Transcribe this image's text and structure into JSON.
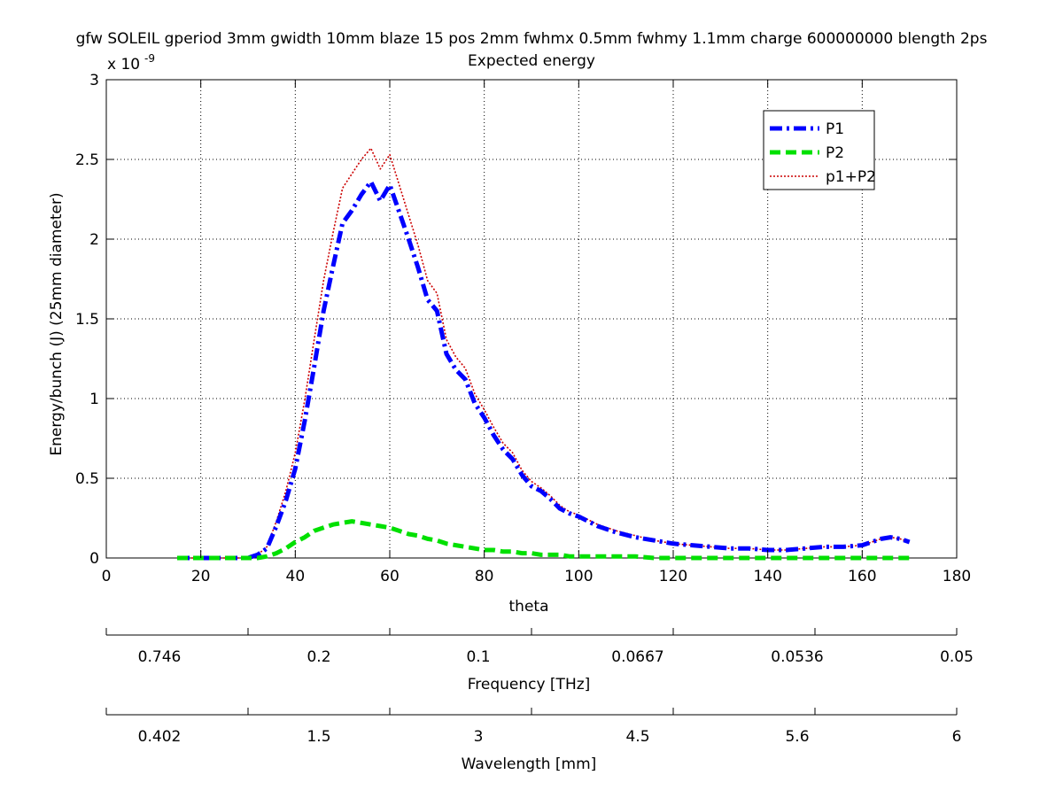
{
  "chart_data": {
    "type": "line",
    "title": "gfw SOLEIL gperiod 3mm gwidth 10mm blaze 15 pos 2mm fwhmx 0.5mm fwhmy 1.1mm charge 600000000 blength 2ps",
    "subtitle": "Expected energy",
    "xlabel": "theta",
    "ylabel": "Energy/bunch (J) (25mm diameter)",
    "y_exponent_label": "x 10",
    "y_exponent": "-9",
    "xlim": [
      0,
      180
    ],
    "ylim": [
      0,
      3
    ],
    "x_ticks": [
      "0",
      "20",
      "40",
      "60",
      "80",
      "100",
      "120",
      "140",
      "160",
      "180"
    ],
    "y_ticks": [
      "0",
      "0.5",
      "1",
      "1.5",
      "2",
      "2.5",
      "3"
    ],
    "grid": true,
    "legend_position": "top-right",
    "secondary_axes": [
      {
        "label": "Frequency [THz]",
        "ticks": [
          "0.746",
          "0.2",
          "0.1",
          "0.0667",
          "0.0536",
          "0.05"
        ]
      },
      {
        "label": "Wavelength [mm]",
        "ticks": [
          "0.402",
          "1.5",
          "3",
          "4.5",
          "5.6",
          "6"
        ]
      }
    ],
    "x": [
      15,
      18,
      20,
      22,
      24,
      26,
      28,
      30,
      32,
      34,
      36,
      38,
      40,
      42,
      44,
      46,
      48,
      50,
      52,
      54,
      56,
      58,
      60,
      62,
      64,
      66,
      68,
      70,
      72,
      74,
      76,
      78,
      80,
      82,
      84,
      86,
      88,
      90,
      92,
      94,
      96,
      98,
      100,
      104,
      108,
      112,
      116,
      120,
      124,
      128,
      132,
      136,
      140,
      144,
      148,
      152,
      156,
      160,
      164,
      166,
      168,
      170
    ],
    "series": [
      {
        "name": "P1",
        "color": "#0000ff",
        "style": "dash-dot",
        "values": [
          0,
          0,
          0,
          0,
          0,
          0,
          0,
          0,
          0.02,
          0.06,
          0.2,
          0.36,
          0.56,
          0.86,
          1.2,
          1.55,
          1.83,
          2.1,
          2.18,
          2.28,
          2.36,
          2.24,
          2.34,
          2.17,
          2.0,
          1.82,
          1.62,
          1.55,
          1.28,
          1.18,
          1.12,
          0.97,
          0.88,
          0.77,
          0.68,
          0.62,
          0.52,
          0.45,
          0.42,
          0.37,
          0.31,
          0.28,
          0.26,
          0.2,
          0.16,
          0.13,
          0.11,
          0.09,
          0.08,
          0.07,
          0.06,
          0.06,
          0.05,
          0.05,
          0.06,
          0.07,
          0.07,
          0.08,
          0.12,
          0.13,
          0.12,
          0.1
        ]
      },
      {
        "name": "P2",
        "color": "#00e000",
        "style": "dashed",
        "values": [
          0,
          0,
          0,
          0,
          0,
          0,
          0,
          0,
          0.0,
          0.01,
          0.03,
          0.06,
          0.1,
          0.13,
          0.17,
          0.19,
          0.21,
          0.22,
          0.23,
          0.22,
          0.21,
          0.2,
          0.19,
          0.17,
          0.15,
          0.14,
          0.12,
          0.11,
          0.09,
          0.08,
          0.07,
          0.06,
          0.05,
          0.05,
          0.04,
          0.04,
          0.03,
          0.03,
          0.02,
          0.02,
          0.02,
          0.01,
          0.01,
          0.01,
          0.01,
          0.01,
          0.0,
          0.0,
          0.0,
          0.0,
          0.0,
          0.0,
          0.0,
          0.0,
          0.0,
          0.0,
          0.0,
          0.0,
          0.0,
          0.0,
          0.0,
          0.0
        ]
      },
      {
        "name": "p1+P2",
        "color": "#cc0000",
        "style": "dotted",
        "values": [
          0,
          0,
          0,
          0,
          0,
          0,
          0,
          0,
          0.02,
          0.07,
          0.23,
          0.42,
          0.66,
          0.99,
          1.37,
          1.74,
          2.04,
          2.32,
          2.41,
          2.5,
          2.57,
          2.44,
          2.53,
          2.34,
          2.15,
          1.96,
          1.74,
          1.66,
          1.37,
          1.26,
          1.19,
          1.03,
          0.93,
          0.82,
          0.72,
          0.66,
          0.55,
          0.48,
          0.44,
          0.39,
          0.33,
          0.29,
          0.27,
          0.21,
          0.17,
          0.14,
          0.11,
          0.09,
          0.08,
          0.07,
          0.06,
          0.06,
          0.05,
          0.05,
          0.06,
          0.07,
          0.07,
          0.08,
          0.12,
          0.13,
          0.12,
          0.1
        ]
      }
    ]
  }
}
